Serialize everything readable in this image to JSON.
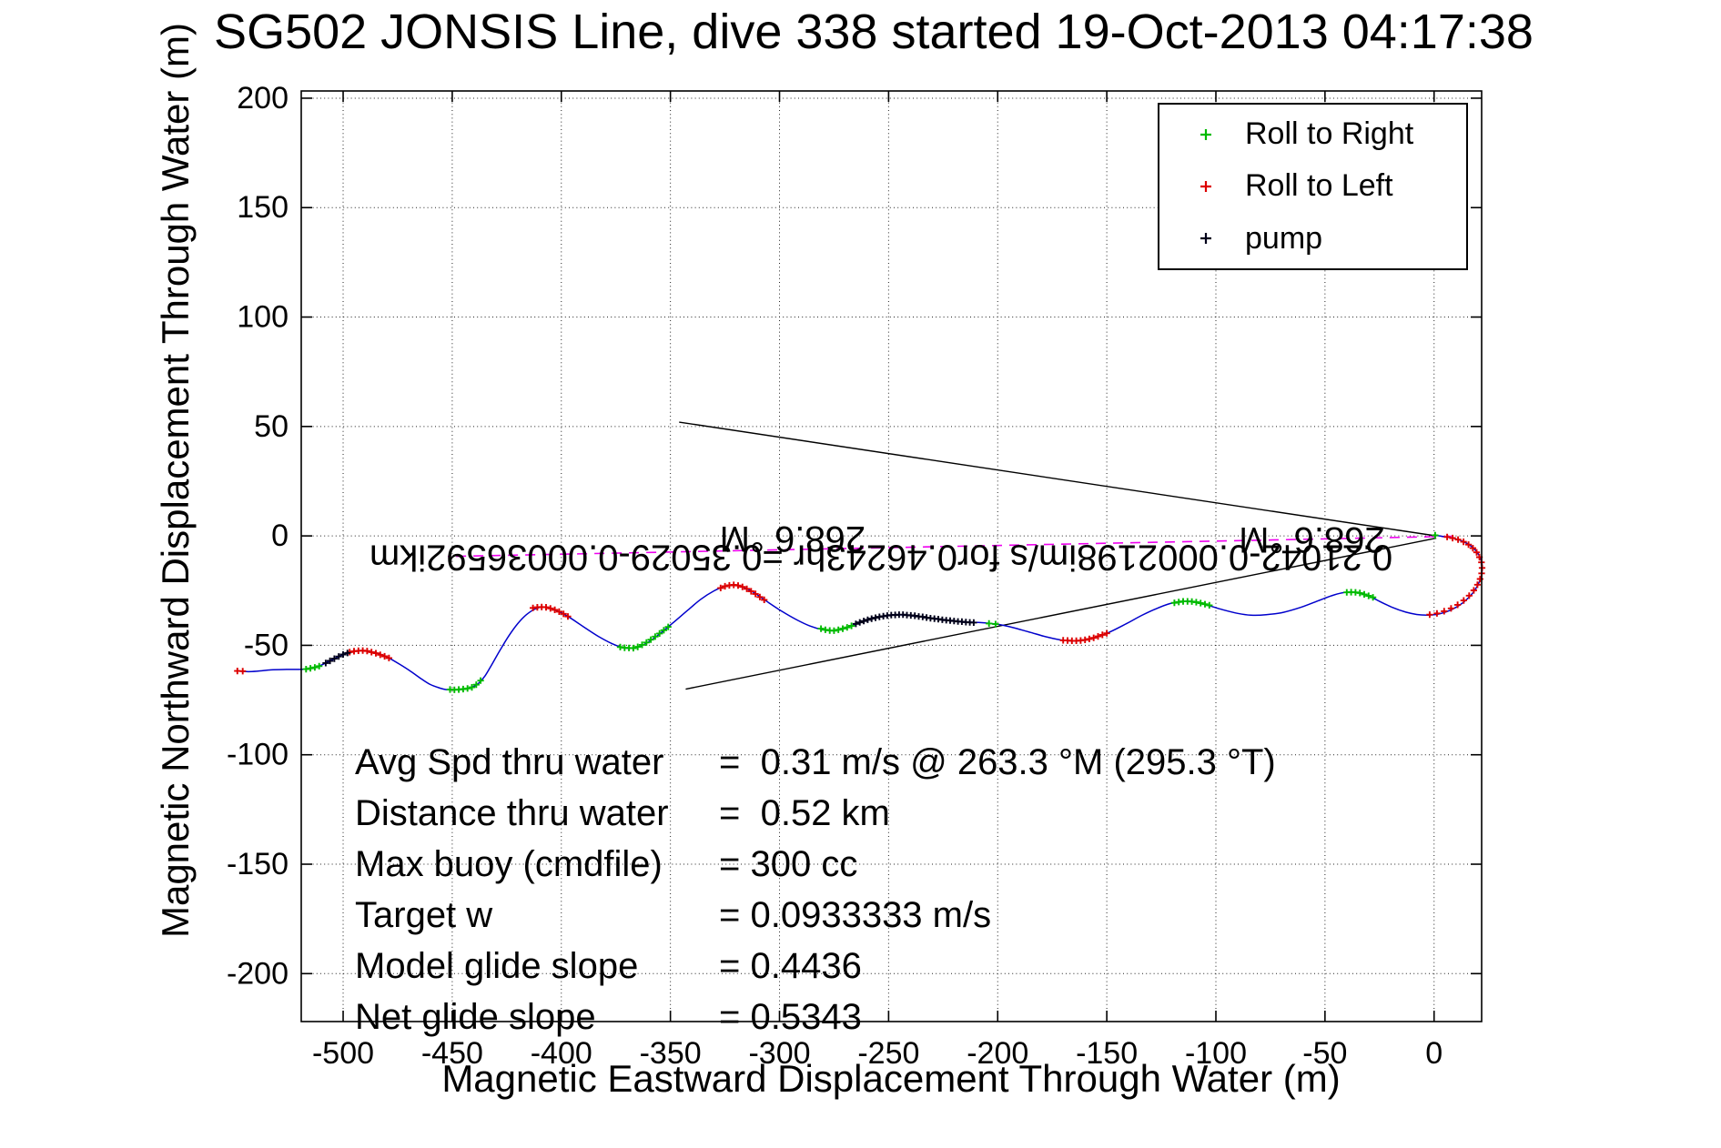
{
  "title": "SG502 JONSIS Line, dive 338 started 19-Oct-2013 04:17:38",
  "axes": {
    "xlabel": "Magnetic Eastward Displacement Through Water (m)",
    "ylabel": "Magnetic Northward Displacement Through Water (m)"
  },
  "legend": {
    "items": [
      {
        "label": "Roll to Right",
        "color": "#00bb00",
        "marker": "plus"
      },
      {
        "label": "Roll to Left",
        "color": "#dd0000",
        "marker": "plus"
      },
      {
        "label": "pump",
        "color": "#00001a",
        "marker": "plus"
      }
    ]
  },
  "stats_panel": {
    "rows": [
      {
        "label": "Avg Spd thru water",
        "value": "=  0.31 m/s @ 263.3 °M (295.3 °T)"
      },
      {
        "label": "Distance thru water",
        "value": "=  0.52 km"
      },
      {
        "label": "Max buoy (cmdfile)",
        "value": "= 300 cc"
      },
      {
        "label": "Target w",
        "value": "= 0.0933333 m/s"
      },
      {
        "label": "Model glide slope",
        "value": "= 0.4436"
      },
      {
        "label": "Net glide slope",
        "value": "= 0.5343"
      }
    ]
  },
  "chart_data": {
    "type": "line",
    "title": "SG502 JONSIS Line, dive 338 started 19-Oct-2013 04:17:38",
    "xlabel": "Magnetic Eastward Displacement Through Water (m)",
    "ylabel": "Magnetic Northward Displacement Through Water (m)",
    "xlim": [
      -519.2,
      21.8
    ],
    "ylim": [
      -221.9,
      203.3
    ],
    "grid": true,
    "legend_position": "top-right",
    "x_ticks": {
      "values": [
        -500,
        -450,
        -400,
        -350,
        -300,
        -250,
        -200,
        -150,
        -100,
        -50,
        0
      ],
      "labels": [
        "-500",
        "-450",
        "-400",
        "-350",
        "-300",
        "-250",
        "-200",
        "-150",
        "-100",
        "-50",
        "0"
      ]
    },
    "y_ticks": {
      "values": [
        200,
        150,
        100,
        50,
        0,
        -50,
        -100,
        -150,
        -200
      ],
      "labels": [
        "200",
        "150",
        "100",
        "50",
        "0",
        "-50",
        "-100",
        "-150",
        "-200"
      ]
    },
    "track_color": "#0000cc",
    "track": [
      [
        0.5,
        0.3
      ],
      [
        5,
        -0.4
      ],
      [
        9,
        -1.1
      ],
      [
        13,
        -2.4
      ],
      [
        16.5,
        -4.3
      ],
      [
        19.2,
        -6.8
      ],
      [
        21.1,
        -9.8
      ],
      [
        22,
        -13
      ],
      [
        22,
        -16.2
      ],
      [
        21.3,
        -19.5
      ],
      [
        19.9,
        -22.8
      ],
      [
        17.8,
        -26
      ],
      [
        15.1,
        -28.9
      ],
      [
        11.9,
        -31.5
      ],
      [
        8.4,
        -33.5
      ],
      [
        4.7,
        -35
      ],
      [
        1,
        -35.9
      ],
      [
        -3,
        -36.2
      ],
      [
        -8,
        -35.9
      ],
      [
        -13,
        -34.8
      ],
      [
        -19,
        -32.7
      ],
      [
        -25,
        -29.9
      ],
      [
        -30,
        -27.4
      ],
      [
        -35,
        -25.9
      ],
      [
        -40,
        -25.7
      ],
      [
        -46,
        -27
      ],
      [
        -53,
        -29.6
      ],
      [
        -61,
        -32.6
      ],
      [
        -69,
        -34.9
      ],
      [
        -77,
        -36
      ],
      [
        -84,
        -36.2
      ],
      [
        -90,
        -35.4
      ],
      [
        -97,
        -33.7
      ],
      [
        -104,
        -31.6
      ],
      [
        -110,
        -30.1
      ],
      [
        -115,
        -29.9
      ],
      [
        -121,
        -30.9
      ],
      [
        -127,
        -33.1
      ],
      [
        -134,
        -36.3
      ],
      [
        -141,
        -40.1
      ],
      [
        -149,
        -44.1
      ],
      [
        -156,
        -46.6
      ],
      [
        -163,
        -47.9
      ],
      [
        -170,
        -47.7
      ],
      [
        -177,
        -46.3
      ],
      [
        -185,
        -44.1
      ],
      [
        -193,
        -41.9
      ],
      [
        -200,
        -40.4
      ],
      [
        -208,
        -39.6
      ],
      [
        -216,
        -39.3
      ],
      [
        -224,
        -38.5
      ],
      [
        -232,
        -37.4
      ],
      [
        -240,
        -36.4
      ],
      [
        -246,
        -36
      ],
      [
        -252,
        -36.7
      ],
      [
        -258,
        -38.1
      ],
      [
        -264,
        -40
      ],
      [
        -270,
        -42.2
      ],
      [
        -275,
        -43.3
      ],
      [
        -280,
        -42.9
      ],
      [
        -286,
        -41.2
      ],
      [
        -292,
        -38.4
      ],
      [
        -299,
        -34.4
      ],
      [
        -306,
        -29.8
      ],
      [
        -312,
        -25.7
      ],
      [
        -317,
        -23.2
      ],
      [
        -321,
        -22.4
      ],
      [
        -325,
        -23
      ],
      [
        -330,
        -25.1
      ],
      [
        -336,
        -28.9
      ],
      [
        -342,
        -33.9
      ],
      [
        -349,
        -39.9
      ],
      [
        -356,
        -45.6
      ],
      [
        -362,
        -49.6
      ],
      [
        -367,
        -51.3
      ],
      [
        -372,
        -51
      ],
      [
        -377,
        -49.1
      ],
      [
        -383,
        -45.9
      ],
      [
        -390,
        -41.4
      ],
      [
        -397,
        -36.8
      ],
      [
        -403,
        -33.8
      ],
      [
        -408,
        -32.5
      ],
      [
        -412,
        -33.4
      ],
      [
        -416,
        -36
      ],
      [
        -420,
        -40.1
      ],
      [
        -424,
        -45.6
      ],
      [
        -428,
        -52.1
      ],
      [
        -432,
        -59
      ],
      [
        -435,
        -64
      ],
      [
        -438,
        -67.4
      ],
      [
        -441,
        -69.2
      ],
      [
        -445,
        -70
      ],
      [
        -449,
        -70.3
      ],
      [
        -453,
        -70.2
      ],
      [
        -456,
        -69.4
      ],
      [
        -460,
        -67.9
      ],
      [
        -464,
        -65.4
      ],
      [
        -469,
        -61.9
      ],
      [
        -474,
        -58.7
      ],
      [
        -479,
        -55.8
      ],
      [
        -484,
        -53.7
      ],
      [
        -488,
        -52.8
      ],
      [
        -492,
        -52.4
      ],
      [
        -496,
        -52.9
      ],
      [
        -500,
        -54.2
      ],
      [
        -504,
        -56.1
      ],
      [
        -508,
        -58.1
      ],
      [
        -512,
        -59.8
      ],
      [
        -516,
        -60.7
      ],
      [
        -520,
        -61
      ],
      [
        -526,
        -61
      ],
      [
        -533,
        -61.2
      ],
      [
        -539,
        -61.8
      ],
      [
        -544,
        -62
      ],
      [
        -548.5,
        -61.6
      ]
    ],
    "marker_series": [
      {
        "name": "Roll to Right",
        "color": "#00bb00",
        "points": [
          [
            0.5,
            0.3
          ],
          [
            -28,
            -28.1
          ],
          [
            -30,
            -27.4
          ],
          [
            -32,
            -26.7
          ],
          [
            -34,
            -26.1
          ],
          [
            -36,
            -25.8
          ],
          [
            -38,
            -25.7
          ],
          [
            -40,
            -25.8
          ],
          [
            -103,
            -31.7
          ],
          [
            -105,
            -31.2
          ],
          [
            -107,
            -30.7
          ],
          [
            -109,
            -30.3
          ],
          [
            -111,
            -30
          ],
          [
            -113,
            -29.9
          ],
          [
            -115,
            -29.9
          ],
          [
            -117,
            -30.2
          ],
          [
            -119,
            -30.6
          ],
          [
            -201,
            -40.3
          ],
          [
            -204,
            -40
          ],
          [
            -267,
            -41.1
          ],
          [
            -269,
            -41.8
          ],
          [
            -271,
            -42.4
          ],
          [
            -273,
            -42.9
          ],
          [
            -275,
            -43.3
          ],
          [
            -277,
            -43.2
          ],
          [
            -279,
            -42.9
          ],
          [
            -281,
            -42.4
          ],
          [
            -351,
            -41.6
          ],
          [
            -353,
            -43.1
          ],
          [
            -355,
            -44.6
          ],
          [
            -357,
            -46
          ],
          [
            -359,
            -47.4
          ],
          [
            -361,
            -48.7
          ],
          [
            -363,
            -49.8
          ],
          [
            -365,
            -50.7
          ],
          [
            -367,
            -51.3
          ],
          [
            -369,
            -51.2
          ],
          [
            -371,
            -51.1
          ],
          [
            -373,
            -50.8
          ],
          [
            -437,
            -66.1
          ],
          [
            -439,
            -68
          ],
          [
            -441,
            -69.2
          ],
          [
            -443,
            -69.7
          ],
          [
            -445,
            -70
          ],
          [
            -447,
            -70.2
          ],
          [
            -449,
            -70.3
          ],
          [
            -451,
            -70.2
          ],
          [
            -511,
            -59.5
          ],
          [
            -513,
            -60.1
          ],
          [
            -515,
            -60.5
          ],
          [
            -517,
            -60.9
          ]
        ]
      },
      {
        "name": "Roll to Left",
        "color": "#dd0000",
        "points": [
          [
            6,
            -0.5
          ],
          [
            8.5,
            -1
          ],
          [
            11,
            -1.7
          ],
          [
            13.5,
            -2.7
          ],
          [
            15.8,
            -4
          ],
          [
            17.8,
            -5.6
          ],
          [
            19.5,
            -7.5
          ],
          [
            20.8,
            -9.7
          ],
          [
            21.7,
            -12.1
          ],
          [
            22,
            -14.6
          ],
          [
            21.8,
            -17.1
          ],
          [
            21.1,
            -19.7
          ],
          [
            19.9,
            -22.3
          ],
          [
            18.2,
            -24.9
          ],
          [
            16.1,
            -27.3
          ],
          [
            13.6,
            -29.5
          ],
          [
            10.8,
            -31.5
          ],
          [
            7.8,
            -33.1
          ],
          [
            4.6,
            -34.4
          ],
          [
            1.3,
            -35.4
          ],
          [
            -2,
            -36
          ],
          [
            -150,
            -44.5
          ],
          [
            -152,
            -45.2
          ],
          [
            -154,
            -45.9
          ],
          [
            -156,
            -46.6
          ],
          [
            -158,
            -47.1
          ],
          [
            -160,
            -47.5
          ],
          [
            -162,
            -47.8
          ],
          [
            -164,
            -47.9
          ],
          [
            -166,
            -47.9
          ],
          [
            -168,
            -47.8
          ],
          [
            -170,
            -47.7
          ],
          [
            -307,
            -29.2
          ],
          [
            -309,
            -27.9
          ],
          [
            -311,
            -26.5
          ],
          [
            -313,
            -25.3
          ],
          [
            -315,
            -24.2
          ],
          [
            -317,
            -23.3
          ],
          [
            -319,
            -22.7
          ],
          [
            -321,
            -22.4
          ],
          [
            -323,
            -22.6
          ],
          [
            -325,
            -23
          ],
          [
            -327,
            -23.8
          ],
          [
            -397,
            -36.8
          ],
          [
            -399,
            -35.6
          ],
          [
            -401,
            -34.6
          ],
          [
            -403,
            -33.8
          ],
          [
            -405,
            -33.1
          ],
          [
            -407,
            -32.6
          ],
          [
            -409,
            -32.5
          ],
          [
            -411,
            -32.6
          ],
          [
            -413,
            -32.9
          ],
          [
            -479,
            -55.8
          ],
          [
            -481,
            -55
          ],
          [
            -483,
            -54.3
          ],
          [
            -485,
            -53.6
          ],
          [
            -487,
            -53.1
          ],
          [
            -489,
            -52.6
          ],
          [
            -491,
            -52.4
          ],
          [
            -493,
            -52.5
          ],
          [
            -495,
            -52.7
          ],
          [
            -497,
            -53.1
          ],
          [
            -546,
            -61.8
          ],
          [
            -548.5,
            -61.7
          ]
        ]
      },
      {
        "name": "pump",
        "color": "#00001a",
        "points": [
          [
            -211,
            -39.6
          ],
          [
            -212.8,
            -39.5
          ],
          [
            -214.6,
            -39.4
          ],
          [
            -216.4,
            -39.2
          ],
          [
            -218.2,
            -39.1
          ],
          [
            -220,
            -38.9
          ],
          [
            -221.8,
            -38.7
          ],
          [
            -223.6,
            -38.5
          ],
          [
            -225.4,
            -38.3
          ],
          [
            -227.2,
            -38
          ],
          [
            -229,
            -37.8
          ],
          [
            -230.8,
            -37.6
          ],
          [
            -232.6,
            -37.3
          ],
          [
            -234.4,
            -37
          ],
          [
            -236.2,
            -36.8
          ],
          [
            -238,
            -36.5
          ],
          [
            -239.8,
            -36.3
          ],
          [
            -241.6,
            -36.2
          ],
          [
            -243.4,
            -36
          ],
          [
            -245.2,
            -36
          ],
          [
            -247,
            -36.1
          ],
          [
            -248.8,
            -36.2
          ],
          [
            -250.6,
            -36.4
          ],
          [
            -252.4,
            -36.7
          ],
          [
            -254.2,
            -37
          ],
          [
            -256,
            -37.4
          ],
          [
            -257.8,
            -37.8
          ],
          [
            -259.6,
            -38.3
          ],
          [
            -261.4,
            -38.9
          ],
          [
            -263.2,
            -39.5
          ],
          [
            -265,
            -40.2
          ],
          [
            -498,
            -53.5
          ],
          [
            -500,
            -54.2
          ],
          [
            -502,
            -55.1
          ],
          [
            -504,
            -56.1
          ],
          [
            -506,
            -57.1
          ],
          [
            -508,
            -58.1
          ]
        ]
      }
    ],
    "bearing_wedge": {
      "color": "#000000",
      "lines": [
        [
          [
            1,
            0
          ],
          [
            -346,
            52
          ]
        ],
        [
          [
            1,
            -1
          ],
          [
            -343,
            -70
          ]
        ]
      ]
    },
    "desired_track_line": {
      "color": "#ee00ee",
      "style": "dashed",
      "from": [
        8,
        -0.2
      ],
      "to": [
        -452,
        -9.4
      ]
    },
    "rotated_labels": [
      {
        "text": "268.6 °M",
        "x": -294,
        "y": -1.2,
        "rotation": 180,
        "size": 40
      },
      {
        "text": "268.6 °M",
        "x": -56,
        "y": -1.7,
        "rotation": 180,
        "size": 40
      },
      {
        "text": "0.21042-0.0002198im/s for0.46243hr =0.35029-0.00036592ikm",
        "x": -253.5,
        "y": -9.8,
        "rotation": 180,
        "size": 40
      }
    ]
  }
}
